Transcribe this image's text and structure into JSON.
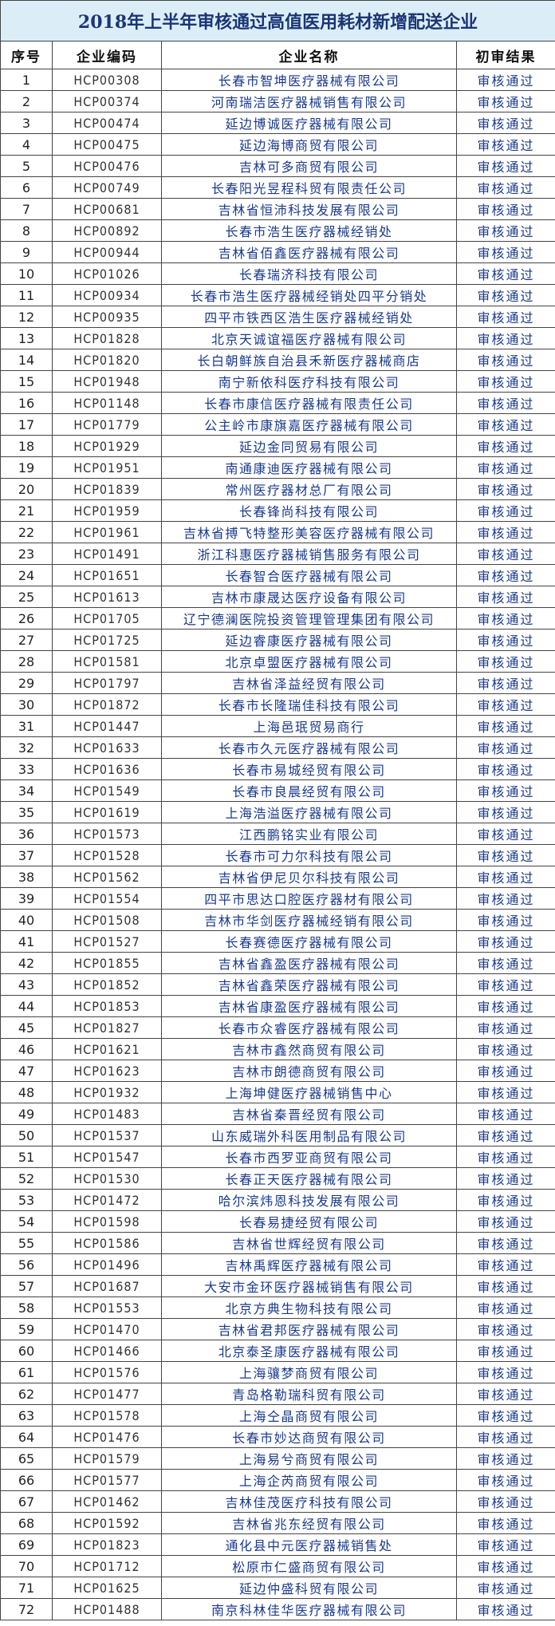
{
  "title": "2018年上半年审核通过高值医用耗材新增配送企业",
  "table": {
    "header": [
      "序号",
      "企业编码",
      "企业名称",
      "初审结果"
    ],
    "rows": [
      [
        "1",
        "HCP00308",
        "长春市智坤医疗器械有限公司",
        "审核通过"
      ],
      [
        "2",
        "HCP00374",
        "河南瑞洁医疗器械销售有限公司",
        "审核通过"
      ],
      [
        "3",
        "HCP00474",
        "延边博诚医疗器械有限公司",
        "审核通过"
      ],
      [
        "4",
        "HCP00475",
        "延边海博商贸有限公司",
        "审核通过"
      ],
      [
        "5",
        "HCP00476",
        "吉林可多商贸有限公司",
        "审核通过"
      ],
      [
        "6",
        "HCP00749",
        "长春阳光昱程科贸有限责任公司",
        "审核通过"
      ],
      [
        "7",
        "HCP00681",
        "吉林省恒沛科技发展有限公司",
        "审核通过"
      ],
      [
        "8",
        "HCP00892",
        "长春市浩生医疗器械经销处",
        "审核通过"
      ],
      [
        "9",
        "HCP00944",
        "吉林省佰鑫医疗器械有限公司",
        "审核通过"
      ],
      [
        "10",
        "HCP01026",
        "长春瑞济科技有限公司",
        "审核通过"
      ],
      [
        "11",
        "HCP00934",
        "长春市浩生医疗器械经销处四平分销处",
        "审核通过"
      ],
      [
        "12",
        "HCP00935",
        "四平市铁西区浩生医疗器械经销处",
        "审核通过"
      ],
      [
        "13",
        "HCP01828",
        "北京天诚谊福医疗器械有限公司",
        "审核通过"
      ],
      [
        "14",
        "HCP01820",
        "长白朝鲜族自治县禾新医疗器械商店",
        "审核通过"
      ],
      [
        "15",
        "HCP01948",
        "南宁新依科医疗科技有限公司",
        "审核通过"
      ],
      [
        "16",
        "HCP01148",
        "长春市康信医疗器械有限责任公司",
        "审核通过"
      ],
      [
        "17",
        "HCP01779",
        "公主岭市康旗嘉医疗器械有限公司",
        "审核通过"
      ],
      [
        "18",
        "HCP01929",
        "延边金同贸易有限公司",
        "审核通过"
      ],
      [
        "19",
        "HCP01951",
        "南通康迪医疗器械有限公司",
        "审核通过"
      ],
      [
        "20",
        "HCP01839",
        "常州医疗器材总厂有限公司",
        "审核通过"
      ],
      [
        "21",
        "HCP01959",
        "长春锋尚科技有限公司",
        "审核通过"
      ],
      [
        "22",
        "HCP01961",
        "吉林省搏飞特整形美容医疗器械有限公司",
        "审核通过"
      ],
      [
        "23",
        "HCP01491",
        "浙江科惠医疗器械销售服务有限公司",
        "审核通过"
      ],
      [
        "24",
        "HCP01651",
        "长春智合医疗器械有限公司",
        "审核通过"
      ],
      [
        "25",
        "HCP01613",
        "吉林市康晟达医疗设备有限公司",
        "审核通过"
      ],
      [
        "26",
        "HCP01705",
        "辽宁德澜医院投资管理管理集团有限公司",
        "审核通过"
      ],
      [
        "27",
        "HCP01725",
        "延边睿康医疗器械有限公司",
        "审核通过"
      ],
      [
        "28",
        "HCP01581",
        "北京卓盟医疗器械有限公司",
        "审核通过"
      ],
      [
        "29",
        "HCP01797",
        "吉林省泽益经贸有限公司",
        "审核通过"
      ],
      [
        "30",
        "HCP01872",
        "长春市长隆瑞佳科技有限公司",
        "审核通过"
      ],
      [
        "31",
        "HCP01447",
        "上海邑珉贸易商行",
        "审核通过"
      ],
      [
        "32",
        "HCP01633",
        "长春市久元医疗器械有限公司",
        "审核通过"
      ],
      [
        "33",
        "HCP01636",
        "长春市易城经贸有限公司",
        "审核通过"
      ],
      [
        "34",
        "HCP01549",
        "长春市良晨经贸有限公司",
        "审核通过"
      ],
      [
        "35",
        "HCP01619",
        "上海浩溢医疗器械有限公司",
        "审核通过"
      ],
      [
        "36",
        "HCP01573",
        "江西鹏铭实业有限公司",
        "审核通过"
      ],
      [
        "37",
        "HCP01528",
        "长春市可力尔科技有限公司",
        "审核通过"
      ],
      [
        "38",
        "HCP01562",
        "吉林省伊尼贝尔科技有限公司",
        "审核通过"
      ],
      [
        "39",
        "HCP01554",
        "四平市思达口腔医疗器材有限公司",
        "审核通过"
      ],
      [
        "40",
        "HCP01508",
        "吉林市华剑医疗器械经销有限公司",
        "审核通过"
      ],
      [
        "41",
        "HCP01527",
        "长春赛德医疗器械有限公司",
        "审核通过"
      ],
      [
        "42",
        "HCP01855",
        "吉林省鑫盈医疗器械有限公司",
        "审核通过"
      ],
      [
        "43",
        "HCP01852",
        "吉林省鑫荣医疗器械有限公司",
        "审核通过"
      ],
      [
        "44",
        "HCP01853",
        "吉林省康盈医疗器械有限公司",
        "审核通过"
      ],
      [
        "45",
        "HCP01827",
        "长春市众睿医疗器械有限公司",
        "审核通过"
      ],
      [
        "46",
        "HCP01621",
        "吉林市鑫然商贸有限公司",
        "审核通过"
      ],
      [
        "47",
        "HCP01623",
        "吉林市朗德商贸有限公司",
        "审核通过"
      ],
      [
        "48",
        "HCP01932",
        "上海坤健医疗器械销售中心",
        "审核通过"
      ],
      [
        "49",
        "HCP01483",
        "吉林省秦晋经贸有限公司",
        "审核通过"
      ],
      [
        "50",
        "HCP01537",
        "山东威瑞外科医用制品有限公司",
        "审核通过"
      ],
      [
        "51",
        "HCP01547",
        "长春市西罗亚商贸有限公司",
        "审核通过"
      ],
      [
        "52",
        "HCP01530",
        "长春正天医疗器械有限公司",
        "审核通过"
      ],
      [
        "53",
        "HCP01472",
        "哈尔滨炜恩科技发展有限公司",
        "审核通过"
      ],
      [
        "54",
        "HCP01598",
        "长春易捷经贸有限公司",
        "审核通过"
      ],
      [
        "55",
        "HCP01586",
        "吉林省世辉经贸有限公司",
        "审核通过"
      ],
      [
        "56",
        "HCP01496",
        "吉林禹辉医疗器械有限公司",
        "审核通过"
      ],
      [
        "57",
        "HCP01687",
        "大安市金环医疗器械销售有限公司",
        "审核通过"
      ],
      [
        "58",
        "HCP01553",
        "北京方典生物科技有限公司",
        "审核通过"
      ],
      [
        "59",
        "HCP01470",
        "吉林省君邦医疗器械有限公司",
        "审核通过"
      ],
      [
        "60",
        "HCP01466",
        "北京泰圣康医疗器械有限公司",
        "审核通过"
      ],
      [
        "61",
        "HCP01576",
        "上海骧梦商贸有限公司",
        "审核通过"
      ],
      [
        "62",
        "HCP01477",
        "青岛格勒瑞科贸有限公司",
        "审核通过"
      ],
      [
        "63",
        "HCP01578",
        "上海仝晶商贸有限公司",
        "审核通过"
      ],
      [
        "64",
        "HCP01476",
        "长春市妙达商贸有限公司",
        "审核通过"
      ],
      [
        "65",
        "HCP01579",
        "上海易兮商贸有限公司",
        "审核通过"
      ],
      [
        "66",
        "HCP01577",
        "上海企芮商贸有限公司",
        "审核通过"
      ],
      [
        "67",
        "HCP01462",
        "吉林佳茂医疗科技有限公司",
        "审核通过"
      ],
      [
        "68",
        "HCP01592",
        "吉林省兆东经贸有限公司",
        "审核通过"
      ],
      [
        "69",
        "HCP01823",
        "通化县中元医疗器械销售处",
        "审核通过"
      ],
      [
        "70",
        "HCP01712",
        "松原市仁盛商贸有限公司",
        "审核通过"
      ],
      [
        "71",
        "HCP01625",
        "延边仲盛科贸有限公司",
        "审核通过"
      ],
      [
        "72",
        "HCP01488",
        "南京科林佳华医疗器械有限公司",
        "审核通过"
      ]
    ]
  }
}
